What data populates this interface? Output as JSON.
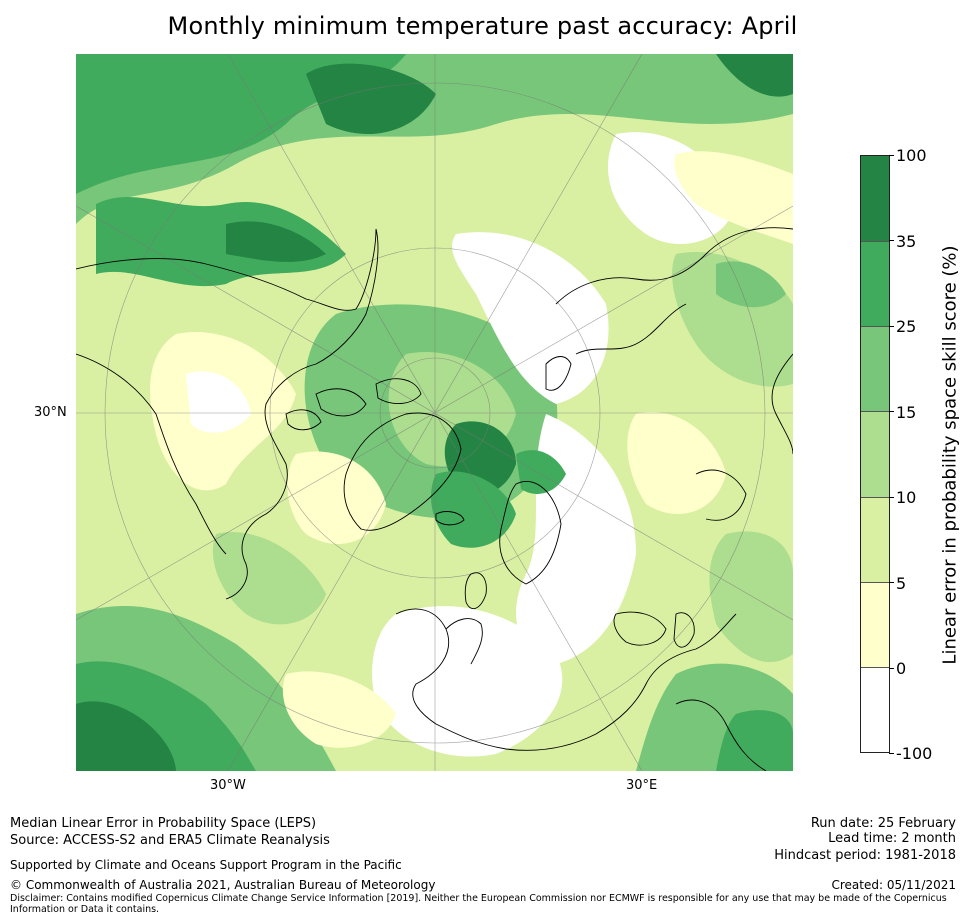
{
  "title": "Monthly minimum temperature past accuracy: April",
  "map": {
    "projection": "north-polar-stereographic",
    "lon_labels": [
      "30°W",
      "30°E"
    ],
    "lat_labels": [
      "30°N"
    ]
  },
  "colorbar": {
    "title": "Linear error in probability space skill score (%)",
    "bounds": [
      "100",
      "35",
      "25",
      "15",
      "10",
      "5",
      "0",
      "-100"
    ],
    "colors": [
      "#238443",
      "#41ab5d",
      "#78c679",
      "#addd8e",
      "#d9f0a3",
      "#ffffcc",
      "#ffffff"
    ],
    "levels": [
      {
        "from": 35,
        "to": 100,
        "color": "#238443"
      },
      {
        "from": 25,
        "to": 35,
        "color": "#41ab5d"
      },
      {
        "from": 15,
        "to": 25,
        "color": "#78c679"
      },
      {
        "from": 10,
        "to": 15,
        "color": "#addd8e"
      },
      {
        "from": 5,
        "to": 10,
        "color": "#d9f0a3"
      },
      {
        "from": 0,
        "to": 5,
        "color": "#ffffcc"
      },
      {
        "from": -100,
        "to": 0,
        "color": "#ffffff"
      }
    ]
  },
  "footer": {
    "line1": "Median Linear Error in Probability Space (LEPS)",
    "line2": "Source: ACCESS-S2 and ERA5 Climate Reanalysis",
    "support": "Supported by Climate and Oceans Support Program in the Pacific",
    "copyright": "© Commonwealth of Australia 2021, Australian Bureau of Meteorology",
    "disclaimer_1": "Disclaimer: Contains modified Copernicus Climate Change Service Information [2019]. Neither the European Commission nor ECMWF is responsible for any use that may be made of the Copernicus",
    "disclaimer_2": "Information or Data it contains.",
    "run_date": "Run date: 25 February",
    "lead_time": "Lead time: 2 month",
    "hindcast": "Hindcast period: 1981-2018",
    "created": "Created: 05/11/2021"
  }
}
